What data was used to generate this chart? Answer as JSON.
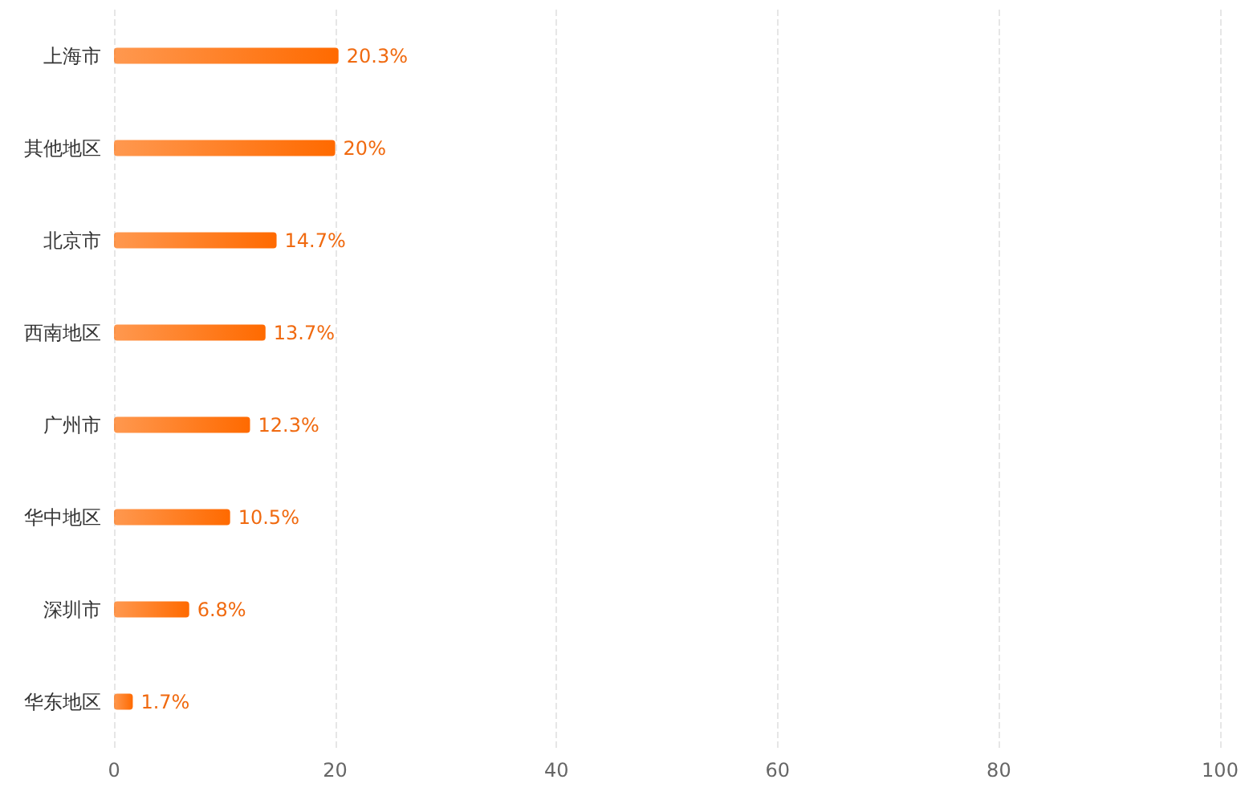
{
  "chart_data": {
    "type": "bar",
    "orientation": "horizontal",
    "categories": [
      "上海市",
      "其他地区",
      "北京市",
      "西南地区",
      "广州市",
      "华中地区",
      "深圳市",
      "华东地区"
    ],
    "values": [
      20.3,
      20,
      14.7,
      13.7,
      12.3,
      10.5,
      6.8,
      1.7
    ],
    "value_labels": [
      "20.3%",
      "20%",
      "14.7%",
      "13.7%",
      "12.3%",
      "10.5%",
      "6.8%",
      "1.7%"
    ],
    "color": "#ff6a00",
    "xlim": [
      0,
      100
    ],
    "xticks": [
      0,
      20,
      40,
      60,
      80,
      100
    ],
    "grid": "x",
    "line_style": "dashed"
  }
}
